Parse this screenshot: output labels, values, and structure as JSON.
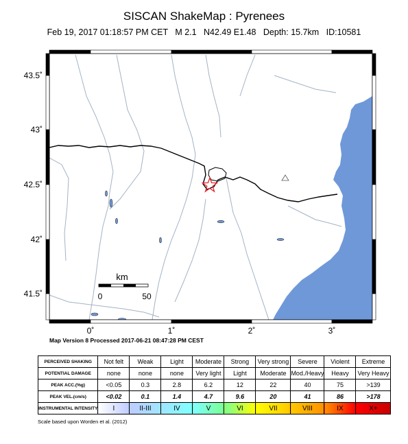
{
  "header": {
    "title": "SISCAN ShakeMap : Pyrenees",
    "subtitle": "Feb 19, 2017 01:18:57 PM CET   M 2.1   N42.49 E1.48   Depth: 15.7km   ID:10581"
  },
  "map": {
    "lat_labels": [
      "43.5˚",
      "43˚",
      "42.5˚",
      "42˚",
      "41.5˚"
    ],
    "lon_labels": [
      "0˚",
      "1˚",
      "2˚",
      "3˚"
    ],
    "scalebar": {
      "unit": "km",
      "start": "0",
      "end": "50"
    },
    "colors": {
      "sea": "#6f98d8",
      "land": "#ffffff",
      "rivers": "#a3b3c4",
      "border": "#000000",
      "epicenter": "#e8222c"
    },
    "icons": {
      "epicenter": "star-icon",
      "station": "triangle-icon"
    },
    "version": "Map Version 8 Processed 2017-06-21 08:47:28 PM CEST"
  },
  "legend": {
    "rows": [
      {
        "label": "PERCEIVED SHAKING",
        "values": [
          "Not felt",
          "Weak",
          "Light",
          "Moderate",
          "Strong",
          "Very strong",
          "Severe",
          "Violent",
          "Extreme"
        ]
      },
      {
        "label": "POTENTIAL DAMAGE",
        "values": [
          "none",
          "none",
          "none",
          "Very light",
          "Light",
          "Moderate",
          "Mod./Heavy",
          "Heavy",
          "Very Heavy"
        ]
      },
      {
        "label": "PEAK ACC.(%g)",
        "values": [
          "<0.05",
          "0.3",
          "2.8",
          "6.2",
          "12",
          "22",
          "40",
          "75",
          ">139"
        ]
      },
      {
        "label": "PEAK VEL.(cm/s)",
        "values": [
          "<0.02",
          "0.1",
          "1.4",
          "4.7",
          "9.6",
          "20",
          "41",
          "86",
          ">178"
        ]
      },
      {
        "label": "INSTRUMENTAL INTENSITY",
        "values": [
          "I",
          "II-III",
          "IV",
          "V",
          "VI",
          "VII",
          "VIII",
          "IX",
          "X+"
        ]
      }
    ],
    "intensity_colors": [
      "#ffffff",
      "#bfccff",
      "#a0e6ff",
      "#80ffff",
      "#7aff93",
      "#ffff00",
      "#ffc800",
      "#ff9100",
      "#ff0000",
      "#c80000"
    ],
    "note": "Scale based upon Worden et al. (2012)"
  }
}
